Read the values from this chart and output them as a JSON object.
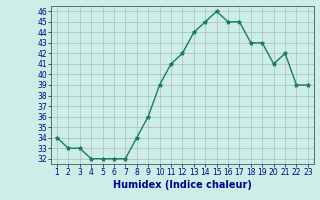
{
  "x": [
    1,
    2,
    3,
    4,
    5,
    6,
    7,
    8,
    9,
    10,
    11,
    12,
    13,
    14,
    15,
    16,
    17,
    18,
    19,
    20,
    21,
    22,
    23
  ],
  "y": [
    34,
    33,
    33,
    32,
    32,
    32,
    32,
    34,
    36,
    39,
    41,
    42,
    44,
    45,
    46,
    45,
    45,
    43,
    43,
    41,
    42,
    39,
    39
  ],
  "line_color": "#1a7a6a",
  "marker": "*",
  "bg_color": "#cceee8",
  "grid_color": "#aaaaaa",
  "xlabel": "Humidex (Indice chaleur)",
  "xlim": [
    0.5,
    23.5
  ],
  "ylim": [
    31.5,
    46.5
  ],
  "yticks": [
    32,
    33,
    34,
    35,
    36,
    37,
    38,
    39,
    40,
    41,
    42,
    43,
    44,
    45,
    46
  ],
  "xticks": [
    1,
    2,
    3,
    4,
    5,
    6,
    7,
    8,
    9,
    10,
    11,
    12,
    13,
    14,
    15,
    16,
    17,
    18,
    19,
    20,
    21,
    22,
    23
  ],
  "xlabel_fontsize": 7,
  "tick_fontsize": 5.5,
  "label_color": "#00008b"
}
